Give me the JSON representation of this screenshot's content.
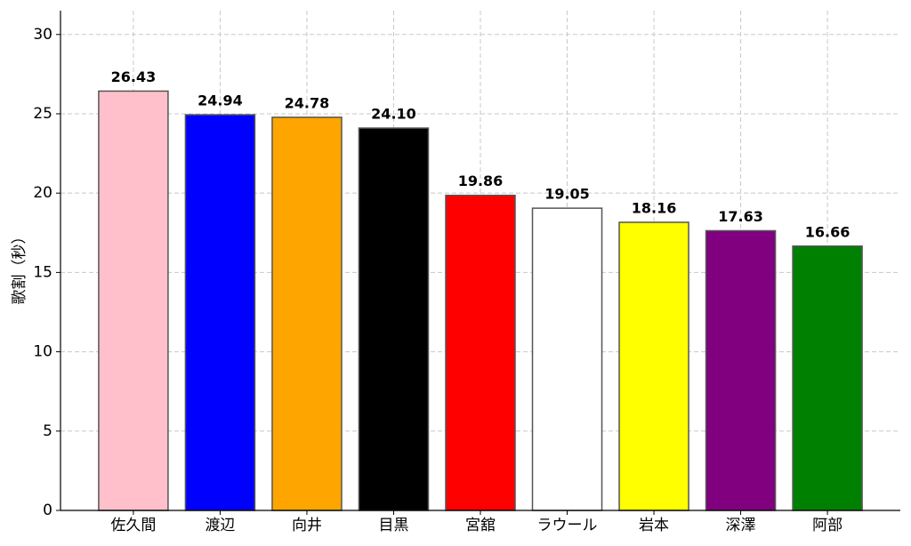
{
  "chart_data": {
    "type": "bar",
    "y_label": "歌割（秒）",
    "categories": [
      "佐久間",
      "渡辺",
      "向井",
      "目黒",
      "宮舘",
      "ラウール",
      "岩本",
      "深澤",
      "阿部"
    ],
    "values": [
      26.43,
      24.94,
      24.78,
      24.1,
      19.86,
      19.05,
      18.16,
      17.63,
      16.66
    ],
    "value_labels": [
      "26.43",
      "24.94",
      "24.78",
      "24.10",
      "19.86",
      "19.05",
      "18.16",
      "17.63",
      "16.66"
    ],
    "colors": [
      "#ffc0cb",
      "#0000ff",
      "#ffa500",
      "#000000",
      "#ff0000",
      "#ffffff",
      "#ffff00",
      "#800080",
      "#008000"
    ],
    "edge_color": "#555555",
    "ylim": [
      0,
      31.5
    ],
    "yticks": [
      0,
      5,
      10,
      15,
      20,
      25,
      30
    ],
    "grid": true
  }
}
